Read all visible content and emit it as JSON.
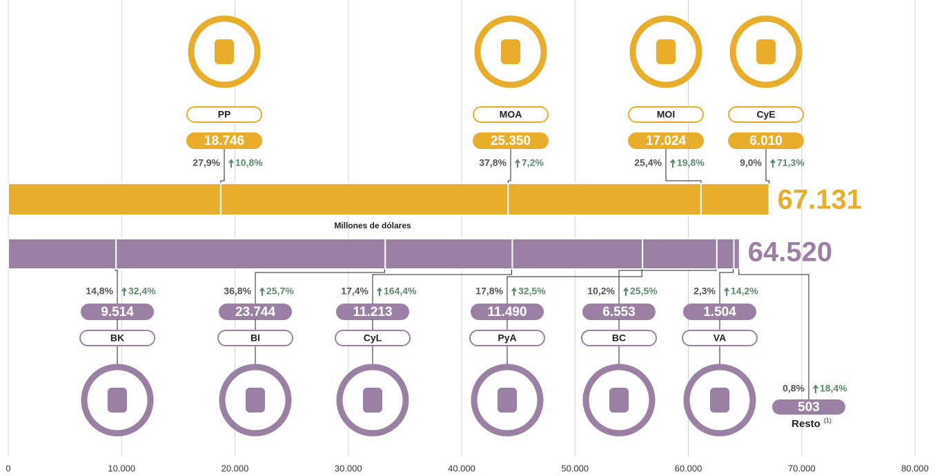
{
  "chart_data": {
    "type": "stacked-bar",
    "xlabel": "Millones de dólares",
    "xlim": [
      0,
      80000
    ],
    "xticks": [
      {
        "value": 0,
        "label": "0"
      },
      {
        "value": 10000,
        "label": "10.000"
      },
      {
        "value": 20000,
        "label": "20.000"
      },
      {
        "value": 30000,
        "label": "30.000"
      },
      {
        "value": 40000,
        "label": "40.000"
      },
      {
        "value": 50000,
        "label": "50.000"
      },
      {
        "value": 60000,
        "label": "60.000"
      },
      {
        "value": 70000,
        "label": "70.000"
      },
      {
        "value": 80000,
        "label": "80.000"
      }
    ],
    "grid": true,
    "growth_color": "#5b8a6b",
    "series": [
      {
        "color": "#e8ae2b",
        "total": 67131,
        "total_label": "67.131",
        "categories": [
          "PP",
          "MOA",
          "MOI",
          "CyE"
        ],
        "values": [
          18746,
          25350,
          17024,
          6010
        ],
        "value_labels": [
          "18.746",
          "25.350",
          "17.024",
          "6.010"
        ],
        "shares": [
          27.9,
          37.8,
          25.4,
          9.0
        ],
        "share_labels": [
          "27,9%",
          "37,8%",
          "25,4%",
          "9,0%"
        ],
        "growths": [
          10.8,
          7.2,
          19.8,
          71.3
        ],
        "growth_labels": [
          "10,8%",
          "7,2%",
          "19,8%",
          "71,3%"
        ]
      },
      {
        "color": "#9a80a2",
        "total": 64520,
        "total_label": "64.520",
        "categories": [
          "BK",
          "BI",
          "CyL",
          "PyA",
          "BC",
          "VA",
          "Resto"
        ],
        "values": [
          9514,
          23744,
          11213,
          11490,
          6553,
          1504,
          503
        ],
        "value_labels": [
          "9.514",
          "23.744",
          "11.213",
          "11.490",
          "6.553",
          "1.504",
          "503"
        ],
        "shares": [
          14.8,
          36.8,
          17.4,
          17.8,
          10.2,
          2.3,
          0.8
        ],
        "share_labels": [
          "14,8%",
          "36,8%",
          "17,4%",
          "17,8%",
          "10,2%",
          "2,3%",
          "0,8%"
        ],
        "growths": [
          32.4,
          25.7,
          164.4,
          32.5,
          25.5,
          14.2,
          18.4
        ],
        "growth_labels": [
          "32,4%",
          "25,7%",
          "164,4%",
          "32,5%",
          "25,5%",
          "14,2%",
          "18,4%"
        ],
        "note": "(1)"
      }
    ]
  }
}
